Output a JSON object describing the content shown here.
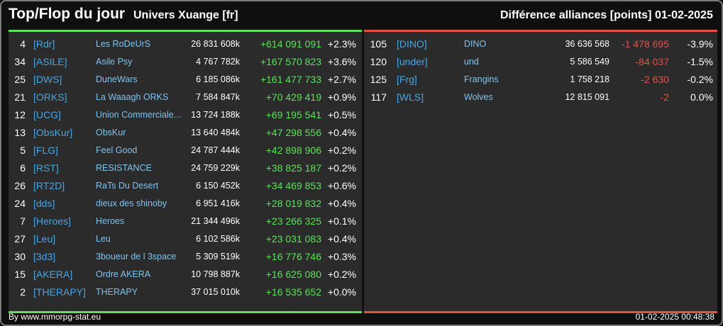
{
  "header": {
    "title": "Top/Flop du jour",
    "universe": "Univers Xuange [fr]",
    "right_title": "Différence alliances [points]",
    "date": "01-02-2025"
  },
  "colors": {
    "gain": "#5be25b",
    "loss": "#e0524c",
    "tag": "#4aa3df",
    "name": "#7fc3ef",
    "panel": "#2b2b2b"
  },
  "top": [
    {
      "rank": "4",
      "tag": "[Rdr]",
      "name": "Les RoDeUrS",
      "points": "26 831 608k",
      "diff": "+614 091 091",
      "pct": "+2.3%"
    },
    {
      "rank": "34",
      "tag": "[ASILE]",
      "name": "Asile Psy",
      "points": "4 767 782k",
      "diff": "+167 570 823",
      "pct": "+3.6%"
    },
    {
      "rank": "25",
      "tag": "[DWS]",
      "name": "DuneWars",
      "points": "6 185 086k",
      "diff": "+161 477 733",
      "pct": "+2.7%"
    },
    {
      "rank": "21",
      "tag": "[ORKS]",
      "name": "La Waaagh ORKS",
      "points": "7 584 847k",
      "diff": "+70 429 419",
      "pct": "+0.9%"
    },
    {
      "rank": "12",
      "tag": "[UCG]",
      "name": "Union Commerciale...",
      "points": "13 724 188k",
      "diff": "+69 195 541",
      "pct": "+0.5%"
    },
    {
      "rank": "13",
      "tag": "[ObsKur]",
      "name": "ObsKur",
      "points": "13 640 484k",
      "diff": "+47 298 556",
      "pct": "+0.4%"
    },
    {
      "rank": "5",
      "tag": "[FLG]",
      "name": "Feel Good",
      "points": "24 787 444k",
      "diff": "+42 898 906",
      "pct": "+0.2%"
    },
    {
      "rank": "6",
      "tag": "[RST]",
      "name": "RESISTANCE",
      "points": "24 759 229k",
      "diff": "+38 825 187",
      "pct": "+0.2%"
    },
    {
      "rank": "26",
      "tag": "[RT2D]",
      "name": "RaTs Du Desert",
      "points": "6 150 452k",
      "diff": "+34 469 853",
      "pct": "+0.6%"
    },
    {
      "rank": "24",
      "tag": "[dds]",
      "name": "dieux des shinoby",
      "points": "6 951 416k",
      "diff": "+28 019 832",
      "pct": "+0.4%"
    },
    {
      "rank": "7",
      "tag": "[Heroes]",
      "name": "Heroes",
      "points": "21 344 496k",
      "diff": "+23 266 325",
      "pct": "+0.1%"
    },
    {
      "rank": "27",
      "tag": "[Leu]",
      "name": "Leu",
      "points": "6 102 586k",
      "diff": "+23 031 083",
      "pct": "+0.4%"
    },
    {
      "rank": "30",
      "tag": "[3d3]",
      "name": "3boueur de l 3space",
      "points": "5 309 519k",
      "diff": "+16 776 746",
      "pct": "+0.3%"
    },
    {
      "rank": "15",
      "tag": "[AKERA]",
      "name": "Ordre AKERA",
      "points": "10 798 887k",
      "diff": "+16 625 080",
      "pct": "+0.2%"
    },
    {
      "rank": "2",
      "tag": "[THERAPY]",
      "name": "THERAPY",
      "points": "37 015 010k",
      "diff": "+16 535 652",
      "pct": "+0.0%"
    }
  ],
  "flop": [
    {
      "rank": "105",
      "tag": "[DINO]",
      "name": "DINO",
      "points": "36 636 568",
      "diff": "-1 478 695",
      "pct": "-3.9%"
    },
    {
      "rank": "120",
      "tag": "[under]",
      "name": "und",
      "points": "5 586 549",
      "diff": "-84 037",
      "pct": "-1.5%"
    },
    {
      "rank": "125",
      "tag": "[Frg]",
      "name": "Frangins",
      "points": "1 758 218",
      "diff": "-2 630",
      "pct": "-0.2%"
    },
    {
      "rank": "117",
      "tag": "[WLS]",
      "name": "Wolves",
      "points": "12 815 091",
      "diff": "-2",
      "pct": "0.0%"
    }
  ],
  "footer": {
    "source": "By www.mmorpg-stat.eu",
    "timestamp": "01-02-2025 00:48:38"
  }
}
